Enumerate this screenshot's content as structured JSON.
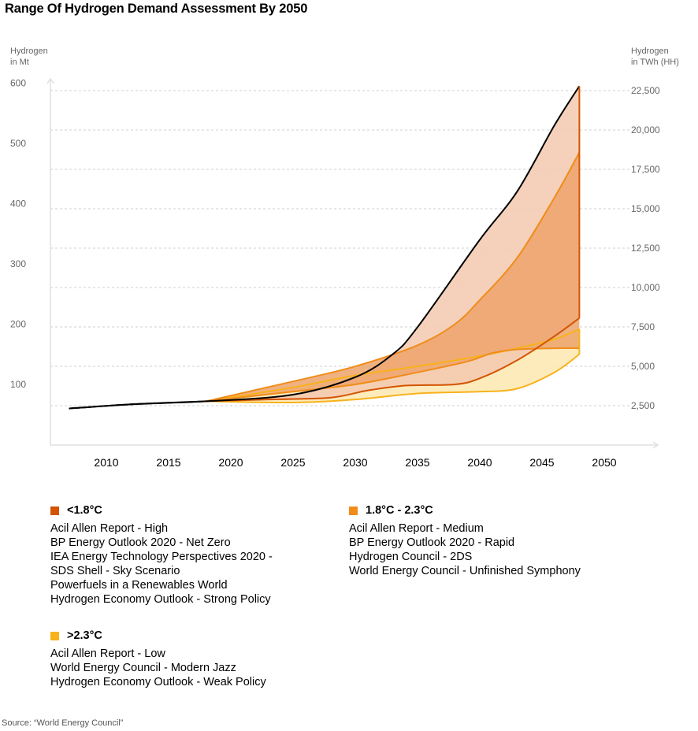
{
  "title": "Range Of Hydrogen Demand Assessment By 2050",
  "source": "Source: “World Energy Council”",
  "colors": {
    "below_1_8": "#d35400",
    "between_1_8_2_3": "#f08c1a",
    "above_2_3": "#f7b21c",
    "envelope_line": "#000000"
  },
  "legend": [
    {
      "label": "<1.8°C",
      "color": "#d35400",
      "items": [
        "Acil Allen Report - High",
        "BP Energy Outlook 2020 - Net Zero",
        "IEA Energy Technology Perspectives 2020 -",
        "SDS Shell - Sky Scenario",
        "Powerfuels in a Renewables World",
        "Hydrogen Economy Outlook - Strong Policy"
      ]
    },
    {
      "label": "1.8°C - 2.3°C",
      "color": "#f08c1a",
      "items": [
        "Acil Allen Report - Medium",
        "BP Energy Outlook 2020 - Rapid",
        "Hydrogen Council - 2DS",
        "World Energy Council - Unfinished Symphony"
      ]
    },
    {
      "label": ">2.3°C",
      "color": "#f7b21c",
      "items": [
        "Acil Allen Report - Low",
        "World Energy Council - Modern Jazz",
        "Hydrogen Economy Outlook - Weak Policy"
      ]
    }
  ],
  "chart_data": {
    "type": "area",
    "title": "Range Of Hydrogen Demand Assessment By 2050",
    "ylabel": "Hydrogen in Mt",
    "y2label": "Hydrogen in TWh (HH)",
    "x_ticks": [
      2010,
      2015,
      2020,
      2025,
      2030,
      2035,
      2040,
      2045,
      2050
    ],
    "y_ticks": [
      100,
      200,
      300,
      400,
      500,
      600
    ],
    "y2_ticks": [
      "2,500",
      "5,000",
      "7,500",
      "10,000",
      "12,500",
      "15,000",
      "17,500",
      "20,000",
      "22,500"
    ],
    "y2_tick_values": [
      2500,
      5000,
      7500,
      10000,
      12500,
      15000,
      17500,
      20000,
      22500
    ],
    "xlim": [
      2005,
      2052
    ],
    "ylim": [
      0,
      610
    ],
    "grid": true,
    "series": [
      {
        "name": "<1.8°C upper",
        "band": "<1.8°C",
        "x": [
          2007,
          2012,
          2018,
          2025,
          2030,
          2033,
          2035,
          2040,
          2043,
          2046,
          2048
        ],
        "values": [
          60,
          67,
          72,
          83,
          112,
          150,
          195,
          340,
          420,
          530,
          595
        ]
      },
      {
        "name": "<1.8°C lower",
        "band": "<1.8°C",
        "x": [
          2018,
          2023,
          2028,
          2031,
          2034,
          2038,
          2040,
          2043,
          2046,
          2048
        ],
        "values": [
          72,
          75,
          78,
          90,
          98,
          100,
          110,
          140,
          180,
          210
        ]
      },
      {
        "name": "1.8°C - 2.3°C upper",
        "band": "1.8°C - 2.3°C",
        "x": [
          2018,
          2025,
          2030,
          2035,
          2038,
          2040,
          2043,
          2046,
          2048
        ],
        "values": [
          72,
          105,
          130,
          165,
          200,
          240,
          310,
          410,
          485
        ]
      },
      {
        "name": "1.8°C - 2.3°C lower",
        "band": "1.8°C - 2.3°C",
        "x": [
          2018,
          2025,
          2030,
          2035,
          2039,
          2041,
          2043,
          2046,
          2048
        ],
        "values": [
          72,
          88,
          100,
          120,
          138,
          152,
          158,
          160,
          160
        ]
      },
      {
        "name": ">2.3°C upper",
        "band": ">2.3°C",
        "x": [
          2018,
          2025,
          2030,
          2035,
          2040,
          2043,
          2046,
          2048
        ],
        "values": [
          72,
          95,
          115,
          130,
          147,
          160,
          175,
          192
        ]
      },
      {
        "name": ">2.3°C lower",
        "band": ">2.3°C",
        "x": [
          2018,
          2025,
          2030,
          2035,
          2040,
          2043,
          2046,
          2048
        ],
        "values": [
          72,
          70,
          75,
          85,
          88,
          93,
          120,
          150
        ]
      }
    ]
  }
}
